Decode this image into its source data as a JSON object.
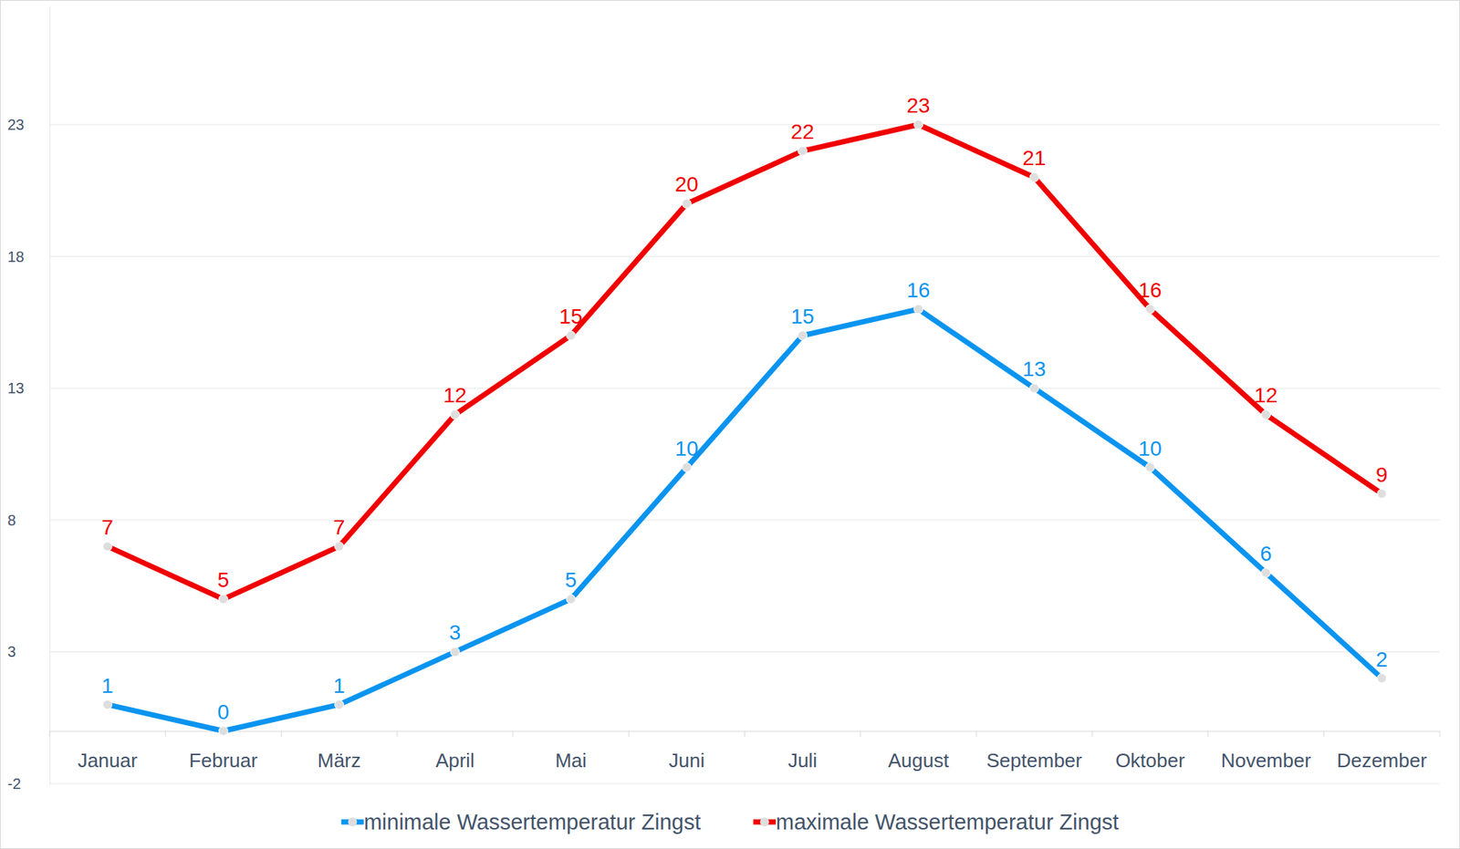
{
  "chart_data": {
    "type": "line",
    "categories": [
      "Januar",
      "Februar",
      "März",
      "April",
      "Mai",
      "Juni",
      "Juli",
      "August",
      "September",
      "Oktober",
      "November",
      "Dezember"
    ],
    "series": [
      {
        "name": "minimale Wassertemperatur Zingst",
        "color": "#0a94f0",
        "marker": "circle",
        "values": [
          1,
          0,
          1,
          3,
          5,
          10,
          15,
          16,
          13,
          10,
          6,
          2
        ]
      },
      {
        "name": "maximale Wassertemperatur Zingst",
        "color": "#f00000",
        "marker": "circle",
        "values": [
          7,
          5,
          7,
          12,
          15,
          20,
          22,
          23,
          21,
          16,
          12,
          9
        ]
      }
    ],
    "ylim": [
      -2,
      27.5
    ],
    "yticks": [
      -2,
      3,
      8,
      13,
      18,
      23
    ],
    "grid": true,
    "data_labels": true,
    "legend": "bottom"
  }
}
